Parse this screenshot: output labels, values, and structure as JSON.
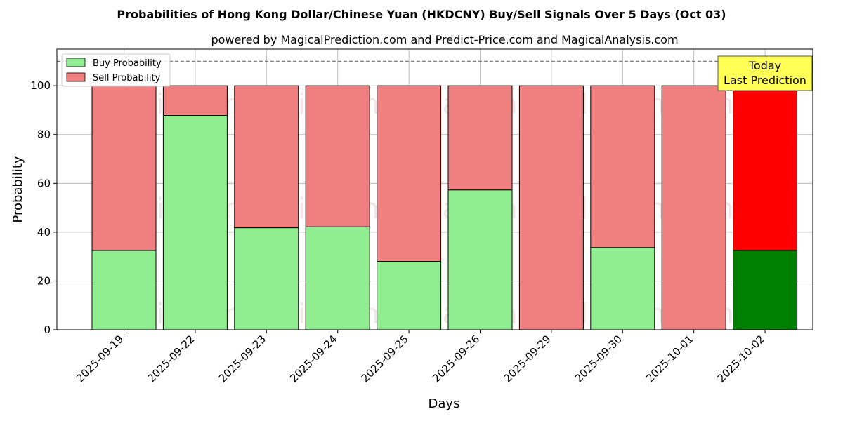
{
  "chart_data": {
    "type": "bar",
    "stacked": true,
    "title": "Probabilities of Hong Kong Dollar/Chinese Yuan (HKDCNY) Buy/Sell Signals Over 5 Days (Oct 03)",
    "subtitle": "powered by MagicalPrediction.com and Predict-Price.com and MagicalAnalysis.com",
    "xlabel": "Days",
    "ylabel": "Probability",
    "ylim": [
      0,
      115
    ],
    "yticks": [
      0,
      20,
      40,
      60,
      80,
      100
    ],
    "grid": true,
    "legend_position": "top-left",
    "categories": [
      "2025-09-19",
      "2025-09-22",
      "2025-09-23",
      "2025-09-24",
      "2025-09-25",
      "2025-09-26",
      "2025-09-29",
      "2025-09-30",
      "2025-10-01",
      "2025-10-02"
    ],
    "series": [
      {
        "name": "Buy Probability",
        "values": [
          32.5,
          87.8,
          41.8,
          42.2,
          28.0,
          57.3,
          0.0,
          33.7,
          0.0,
          32.5
        ],
        "color": "#90ee90",
        "highlight_color": "#008000"
      },
      {
        "name": "Sell Probability",
        "values": [
          67.5,
          12.2,
          58.2,
          57.8,
          72.0,
          42.7,
          100.0,
          66.3,
          100.0,
          67.5
        ],
        "color": "#f08080",
        "highlight_color": "#ff0000"
      }
    ],
    "reference_line": {
      "y": 110,
      "style": "dashed",
      "color": "#808080"
    },
    "highlight_index": 9,
    "annotation": {
      "lines": [
        "Today",
        "Last Prediction"
      ],
      "background": "#ffff55"
    },
    "watermarks": [
      "MagicalAnalysis.com",
      "MagicalPrediction.com"
    ]
  }
}
